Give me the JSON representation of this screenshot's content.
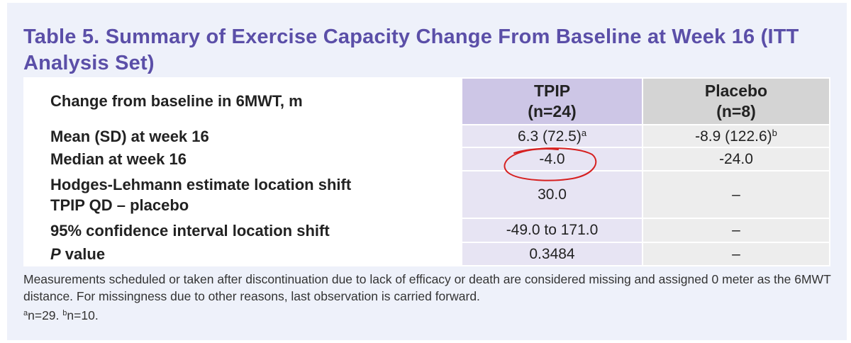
{
  "title": "Table 5. Summary of Exercise Capacity Change From Baseline at Week 16 (ITT Analysis Set)",
  "header": {
    "label": "Change from baseline in 6MWT, m",
    "tpip_name": "TPIP",
    "tpip_n": "(n=24)",
    "placebo_name": "Placebo",
    "placebo_n": "(n=8)"
  },
  "rows": [
    {
      "label": "Mean (SD) at week 16",
      "tpip": "6.3 (72.5)",
      "tpip_sup": "a",
      "placebo": "-8.9 (122.6)",
      "placebo_sup": "b"
    },
    {
      "label": "Median at week 16",
      "tpip": "-4.0",
      "placebo": "-24.0"
    },
    {
      "label_line1": "Hodges-Lehmann estimate location shift",
      "label_line2": "TPIP QD – placebo",
      "tpip": "30.0",
      "placebo": "–"
    },
    {
      "label": "95% confidence interval location shift",
      "tpip": "-49.0 to 171.0",
      "placebo": "–"
    },
    {
      "label_italic": "P",
      "label_rest": " value",
      "tpip": "0.3484",
      "placebo": "–"
    }
  ],
  "footnote": {
    "text": "Measurements scheduled or taken after discontinuation due to lack of efficacy or death are considered missing and assigned 0 meter as the 6MWT distance. For missingness due to other reasons, last observation is carried forward.",
    "a_sup": "a",
    "a_text": "n=29. ",
    "b_sup": "b",
    "b_text": "n=10."
  },
  "colors": {
    "title": "#5b4fa8",
    "tpip_header": "#cdc6e6",
    "tpip_cell": "#e7e4f3",
    "placebo_header": "#d4d4d4",
    "placebo_cell": "#ededed",
    "annotation_circle": "#d62020"
  }
}
